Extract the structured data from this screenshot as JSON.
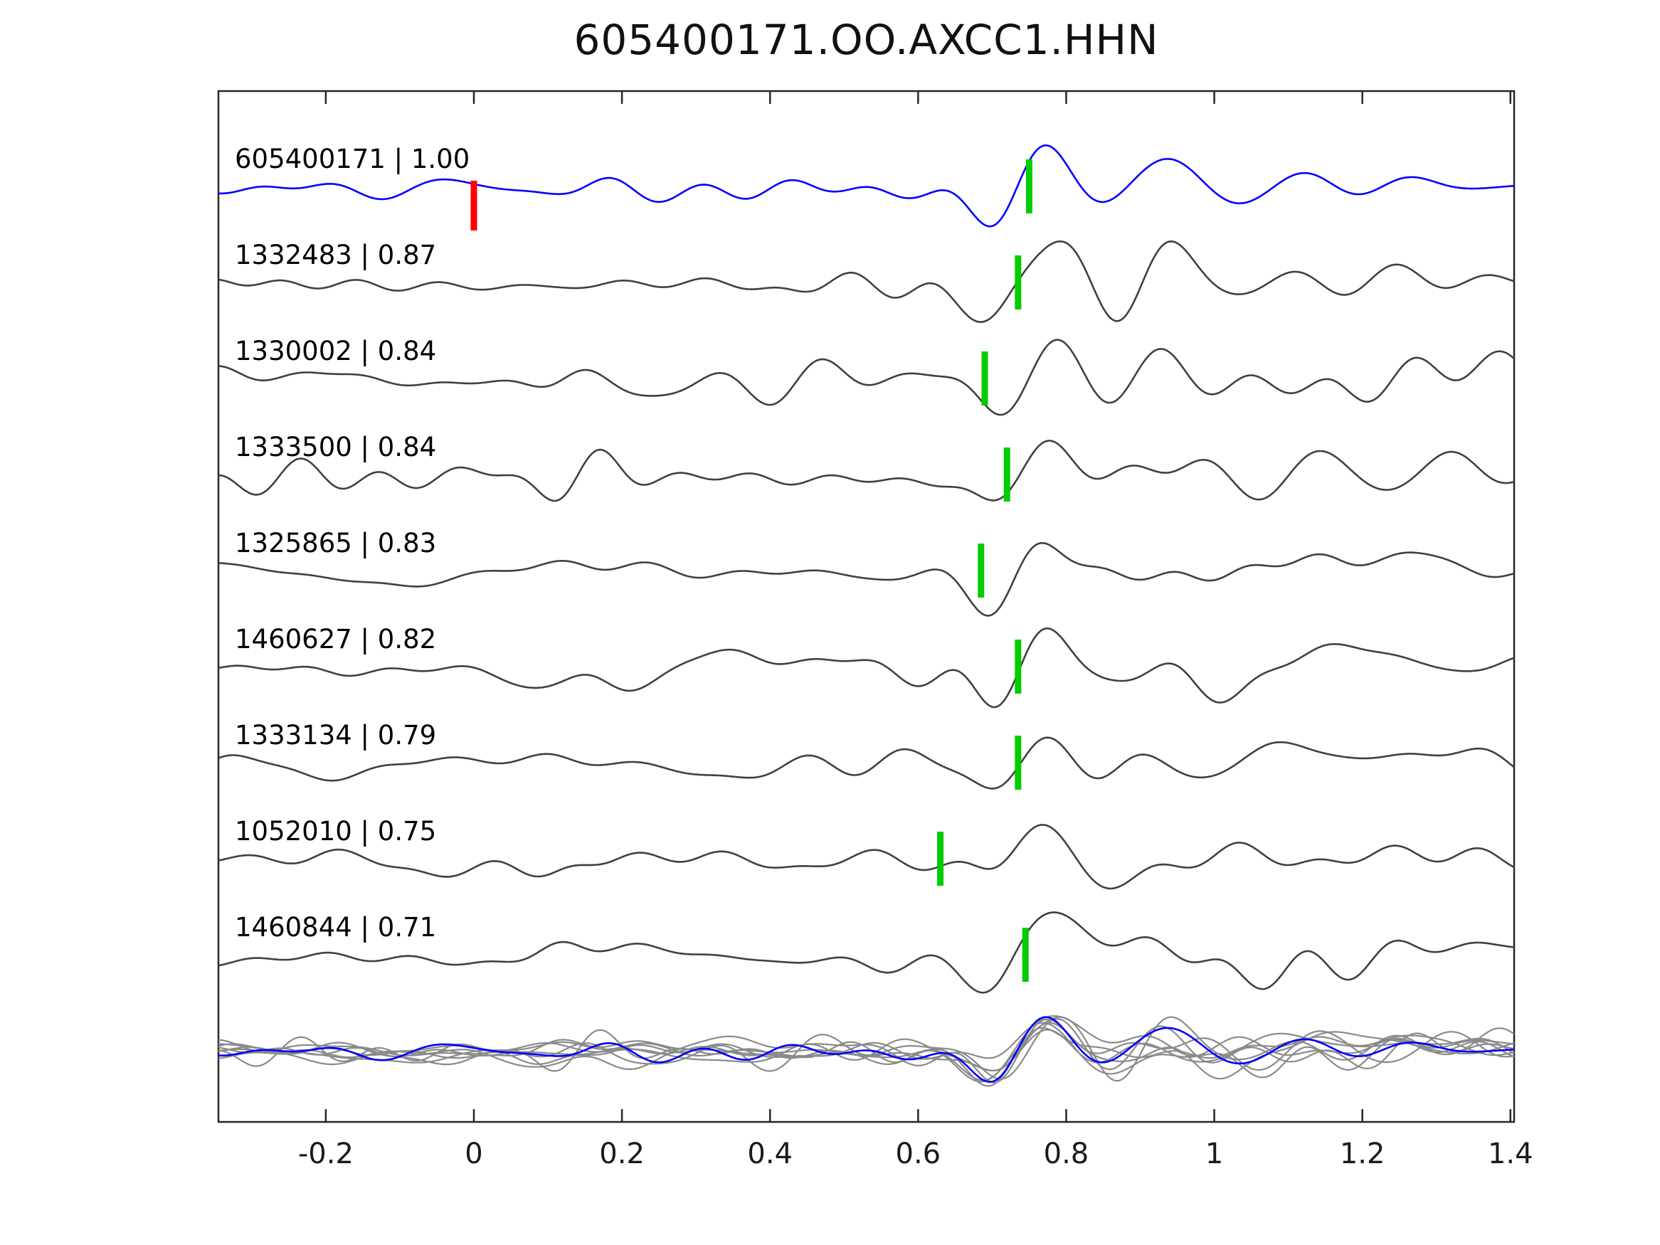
{
  "chart_data": {
    "type": "line",
    "title": "605400171.OO.AXCC1.HHN",
    "xlabel": "",
    "ylabel": "",
    "xlim": [
      -0.345,
      1.405
    ],
    "xticks": [
      -0.2,
      0,
      0.2,
      0.4,
      0.6,
      0.8,
      1,
      1.2,
      1.4
    ],
    "xtick_labels": [
      "-0.2",
      "0",
      "0.2",
      "0.4",
      "0.6",
      "0.8",
      "1",
      "1.2",
      "1.4"
    ],
    "grid": false,
    "legend": null,
    "colors": {
      "template_trace": "#0000ff",
      "match_trace": "#404040",
      "overlay_trace": "#8a8a8a",
      "pick_mark": "#00cc00",
      "zero_mark": "#ff0000",
      "axis": "#262626",
      "label_text": "#000000"
    },
    "traces": [
      {
        "id": "605400171",
        "correlation": "1.00",
        "label": "605400171 | 1.00",
        "role": "template",
        "pick_time": 0.75,
        "zero_mark_time": 0.0
      },
      {
        "id": "1332483",
        "correlation": "0.87",
        "label": "1332483 | 0.87",
        "role": "match",
        "pick_time": 0.735
      },
      {
        "id": "1330002",
        "correlation": "0.84",
        "label": "1330002 | 0.84",
        "role": "match",
        "pick_time": 0.69
      },
      {
        "id": "1333500",
        "correlation": "0.84",
        "label": "1333500 | 0.84",
        "role": "match",
        "pick_time": 0.72
      },
      {
        "id": "1325865",
        "correlation": "0.83",
        "label": "1325865 | 0.83",
        "role": "match",
        "pick_time": 0.685
      },
      {
        "id": "1460627",
        "correlation": "0.82",
        "label": "1460627 | 0.82",
        "role": "match",
        "pick_time": 0.735
      },
      {
        "id": "1333134",
        "correlation": "0.79",
        "label": "1333134 | 0.79",
        "role": "match",
        "pick_time": 0.735
      },
      {
        "id": "1052010",
        "correlation": "0.75",
        "label": "1052010 | 0.75",
        "role": "match",
        "pick_time": 0.63
      },
      {
        "id": "1460844",
        "correlation": "0.71",
        "label": "1460844 | 0.71",
        "role": "match",
        "pick_time": 0.745
      }
    ],
    "overlay_row": {
      "description": "all matched traces superimposed in gray with template in blue",
      "trace_count": 9
    }
  }
}
